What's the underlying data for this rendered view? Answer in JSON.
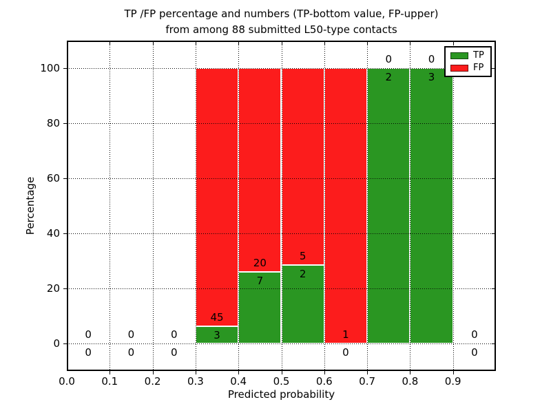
{
  "title": {
    "line1": "TP /FP percentage and numbers (TP-bottom value, FP-upper)",
    "line2": "from among 88 submitted L50-type contacts"
  },
  "colors": {
    "tp": "#2a9622",
    "fp": "#fc1c1c",
    "grid": "#000000",
    "background": "#ffffff"
  },
  "chart_data": {
    "type": "bar",
    "stacked": true,
    "title": "TP /FP percentage and numbers (TP-bottom value, FP-upper) from among 88 submitted L50-type contacts",
    "xlabel": "Predicted probability",
    "ylabel": "Percentage",
    "xlim": [
      0.0,
      1.0
    ],
    "ylim": [
      -10,
      110
    ],
    "x_ticks": [
      "0.0",
      "0.1",
      "0.2",
      "0.3",
      "0.4",
      "0.5",
      "0.6",
      "0.7",
      "0.8",
      "0.9"
    ],
    "y_ticks": [
      0,
      20,
      40,
      60,
      80,
      100
    ],
    "grid": "dotted",
    "total_submitted": 88,
    "legend": {
      "position": "upper right",
      "entries": [
        {
          "label": "TP",
          "color": "#2a9622"
        },
        {
          "label": "FP",
          "color": "#fc1c1c"
        }
      ]
    },
    "bins": [
      {
        "range": [
          0.0,
          0.1
        ],
        "tp": 0,
        "fp": 0,
        "tp_pct": null
      },
      {
        "range": [
          0.1,
          0.2
        ],
        "tp": 0,
        "fp": 0,
        "tp_pct": null
      },
      {
        "range": [
          0.2,
          0.3
        ],
        "tp": 0,
        "fp": 0,
        "tp_pct": null
      },
      {
        "range": [
          0.3,
          0.4
        ],
        "tp": 3,
        "fp": 45,
        "tp_pct": 6.25
      },
      {
        "range": [
          0.4,
          0.5
        ],
        "tp": 7,
        "fp": 20,
        "tp_pct": 25.93
      },
      {
        "range": [
          0.5,
          0.6
        ],
        "tp": 2,
        "fp": 5,
        "tp_pct": 28.57
      },
      {
        "range": [
          0.6,
          0.7
        ],
        "tp": 0,
        "fp": 1,
        "tp_pct": 0
      },
      {
        "range": [
          0.7,
          0.8
        ],
        "tp": 2,
        "fp": 0,
        "tp_pct": 100
      },
      {
        "range": [
          0.8,
          0.9
        ],
        "tp": 3,
        "fp": 0,
        "tp_pct": 100
      },
      {
        "range": [
          0.9,
          1.0
        ],
        "tp": 0,
        "fp": 0,
        "tp_pct": null
      }
    ]
  }
}
